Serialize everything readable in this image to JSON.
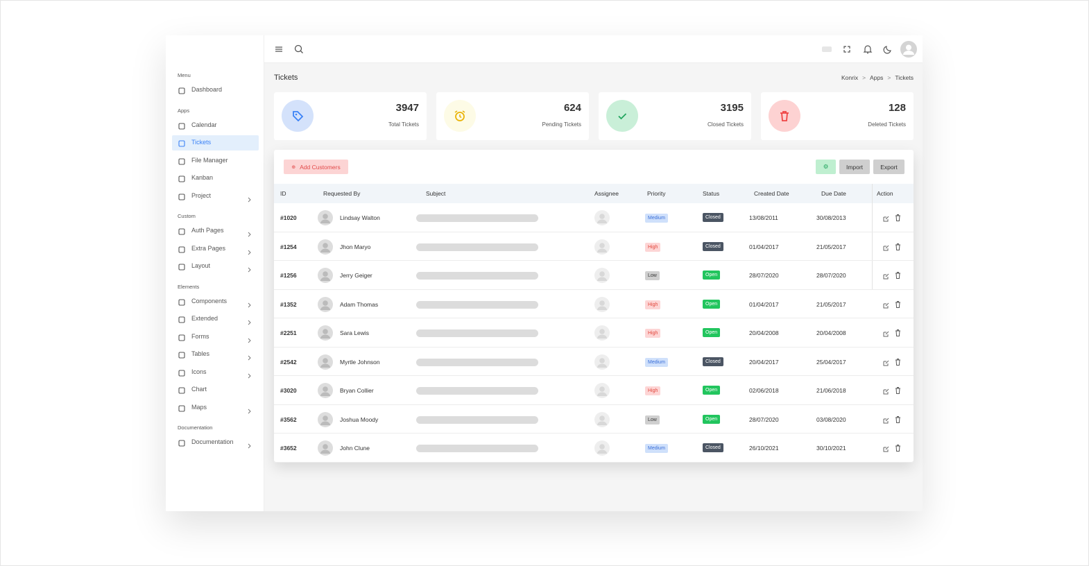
{
  "sidebar": {
    "sections": [
      {
        "heading": "Menu",
        "items": [
          {
            "label": "Dashboard",
            "submenu": false,
            "active": false
          }
        ]
      },
      {
        "heading": "Apps",
        "items": [
          {
            "label": "Calendar",
            "submenu": false,
            "active": false
          },
          {
            "label": "Tickets",
            "submenu": false,
            "active": true
          },
          {
            "label": "File Manager",
            "submenu": false,
            "active": false
          },
          {
            "label": "Kanban",
            "submenu": false,
            "active": false
          },
          {
            "label": "Project",
            "submenu": true,
            "active": false
          }
        ]
      },
      {
        "heading": "Custom",
        "items": [
          {
            "label": "Auth Pages",
            "submenu": true,
            "active": false
          },
          {
            "label": "Extra Pages",
            "submenu": true,
            "active": false
          },
          {
            "label": "Layout",
            "submenu": true,
            "active": false
          }
        ]
      },
      {
        "heading": "Elements",
        "items": [
          {
            "label": "Components",
            "submenu": true,
            "active": false
          },
          {
            "label": "Extended",
            "submenu": true,
            "active": false
          },
          {
            "label": "Forms",
            "submenu": true,
            "active": false
          },
          {
            "label": "Tables",
            "submenu": true,
            "active": false
          },
          {
            "label": "Icons",
            "submenu": true,
            "active": false
          },
          {
            "label": "Chart",
            "submenu": false,
            "active": false
          },
          {
            "label": "Maps",
            "submenu": true,
            "active": false
          }
        ]
      },
      {
        "heading": "Documentation",
        "items": [
          {
            "label": "Documentation",
            "submenu": true,
            "active": false
          }
        ]
      }
    ]
  },
  "header": {
    "title": "Tickets",
    "breadcrumb": [
      "Konrix",
      "Apps",
      "Tickets"
    ]
  },
  "stats": [
    {
      "value": 3947,
      "label": "Total Tickets",
      "icon": "tag",
      "color": "#3b82f6",
      "bg": "#d4e2fb"
    },
    {
      "value": 624,
      "label": "Pending Tickets",
      "icon": "clock",
      "color": "#eab308",
      "bg": "#fdfbe6"
    },
    {
      "value": 3195,
      "label": "Closed Tickets",
      "icon": "check",
      "color": "#22a55e",
      "bg": "#c9efd8"
    },
    {
      "value": 128,
      "label": "Deleted Tickets",
      "icon": "trash",
      "color": "#ef4444",
      "bg": "#fdd2d2"
    }
  ],
  "toolbar": {
    "add": "Add Customers",
    "import": "Import",
    "export": "Export"
  },
  "table": {
    "columns": [
      "ID",
      "Requested By",
      "Subject",
      "Assignee",
      "Priority",
      "Status",
      "Created Date",
      "Due Date",
      "Action"
    ],
    "rows": [
      {
        "id": "#1020",
        "name": "Lindsay Walton",
        "priority": {
          "text": "Medium",
          "tone": "info"
        },
        "status": {
          "text": "Closed",
          "tone": "dark"
        },
        "created": "13/08/2011",
        "due": "30/08/2013"
      },
      {
        "id": "#1254",
        "name": "Jhon Maryo",
        "priority": {
          "text": "High",
          "tone": "danger"
        },
        "status": {
          "text": "Closed",
          "tone": "dark"
        },
        "created": "01/04/2017",
        "due": "21/05/2017"
      },
      {
        "id": "#1256",
        "name": "Jerry Geiger",
        "priority": {
          "text": "Low",
          "tone": "neutral"
        },
        "status": {
          "text": "Open",
          "tone": "success"
        },
        "created": "28/07/2020",
        "due": "28/07/2020"
      },
      {
        "id": "#1352",
        "name": "Adam Thomas",
        "priority": {
          "text": "High",
          "tone": "danger"
        },
        "status": {
          "text": "Open",
          "tone": "success"
        },
        "created": "01/04/2017",
        "due": "21/05/2017"
      },
      {
        "id": "#2251",
        "name": "Sara Lewis",
        "priority": {
          "text": "High",
          "tone": "danger"
        },
        "status": {
          "text": "Open",
          "tone": "success"
        },
        "created": "20/04/2008",
        "due": "20/04/2008"
      },
      {
        "id": "#2542",
        "name": "Myrtle Johnson",
        "priority": {
          "text": "Medium",
          "tone": "info"
        },
        "status": {
          "text": "Closed",
          "tone": "dark"
        },
        "created": "20/04/2017",
        "due": "25/04/2017"
      },
      {
        "id": "#3020",
        "name": "Bryan Collier",
        "priority": {
          "text": "High",
          "tone": "danger"
        },
        "status": {
          "text": "Open",
          "tone": "success"
        },
        "created": "02/06/2018",
        "due": "21/06/2018"
      },
      {
        "id": "#3562",
        "name": "Joshua Moody",
        "priority": {
          "text": "Low",
          "tone": "neutral"
        },
        "status": {
          "text": "Open",
          "tone": "success"
        },
        "created": "28/07/2020",
        "due": "03/08/2020"
      },
      {
        "id": "#3652",
        "name": "John Clune",
        "priority": {
          "text": "Medium",
          "tone": "info"
        },
        "status": {
          "text": "Closed",
          "tone": "dark"
        },
        "created": "26/10/2021",
        "due": "30/10/2021"
      }
    ]
  }
}
